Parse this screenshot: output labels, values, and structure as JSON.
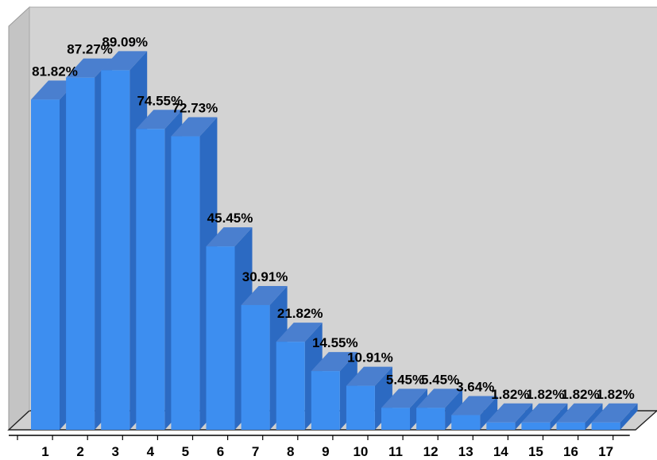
{
  "chart_data": {
    "type": "bar",
    "title": "",
    "xlabel": "",
    "ylabel": "",
    "categories": [
      "1",
      "2",
      "3",
      "4",
      "5",
      "6",
      "7",
      "8",
      "9",
      "10",
      "11",
      "12",
      "13",
      "14",
      "15",
      "16",
      "17"
    ],
    "values": [
      81.82,
      87.27,
      89.09,
      74.55,
      72.73,
      45.45,
      30.91,
      21.82,
      14.55,
      10.91,
      5.45,
      5.45,
      3.64,
      1.82,
      1.82,
      1.82,
      1.82
    ],
    "value_labels": [
      "81.82%",
      "87.27%",
      "89.09%",
      "74.55%",
      "72.73%",
      "45.45%",
      "30.91%",
      "21.82%",
      "14.55%",
      "10.91%",
      "5.45%",
      "5.45%",
      "3.64%",
      "1.82%",
      "1.82%",
      "1.82%",
      "1.82%"
    ],
    "unit": "%",
    "ylim": [
      0,
      100
    ],
    "grid": false,
    "legend": "none",
    "style": "3d-bar",
    "colors": {
      "bar_front": "#3d8ef0",
      "bar_side": "#2c6ac2",
      "bar_top": "#4a7fcf",
      "back_wall": "#d3d3d3",
      "side_wall": "#c4c4c4",
      "floor": "#d0d0d0"
    }
  }
}
